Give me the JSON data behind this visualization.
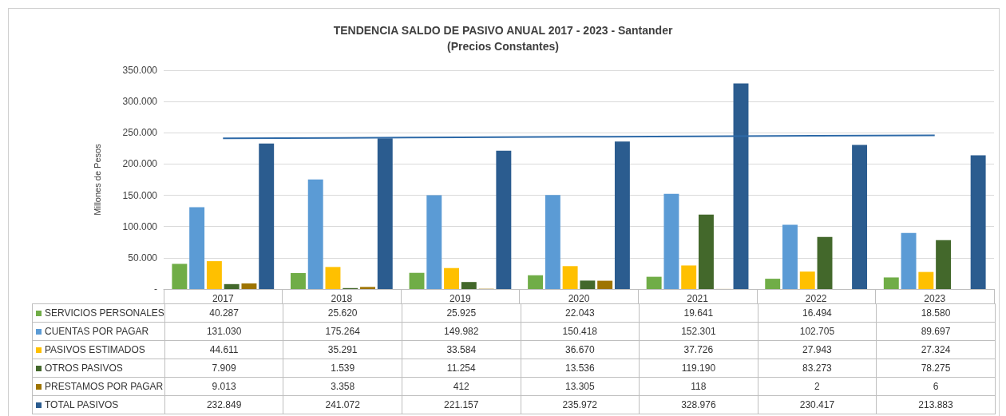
{
  "chart_data": {
    "type": "bar",
    "title": "TENDENCIA SALDO DE PASIVO ANUAL 2017 - 2023 - Santander",
    "subtitle": "(Precios Constantes)",
    "ylabel": "Millones de Pesos",
    "categories": [
      "2017",
      "2018",
      "2019",
      "2020",
      "2021",
      "2022",
      "2023"
    ],
    "series": [
      {
        "name": "SERVICIOS PERSONALES",
        "color": "#70ad47",
        "values": [
          40287,
          25620,
          25925,
          22043,
          19641,
          16494,
          18580
        ],
        "value_labels": [
          "40.287",
          "25.620",
          "25.925",
          "22.043",
          "19.641",
          "16.494",
          "18.580"
        ]
      },
      {
        "name": "CUENTAS POR PAGAR",
        "color": "#5b9bd5",
        "values": [
          131030,
          175264,
          149982,
          150418,
          152301,
          102705,
          89697
        ],
        "value_labels": [
          "131.030",
          "175.264",
          "149.982",
          "150.418",
          "152.301",
          "102.705",
          "89.697"
        ]
      },
      {
        "name": "PASIVOS ESTIMADOS",
        "color": "#ffc000",
        "values": [
          44611,
          35291,
          33584,
          36670,
          37726,
          27943,
          27324
        ],
        "value_labels": [
          "44.611",
          "35.291",
          "33.584",
          "36.670",
          "37.726",
          "27.943",
          "27.324"
        ]
      },
      {
        "name": "OTROS PASIVOS",
        "color": "#43682b",
        "values": [
          7909,
          1539,
          11254,
          13536,
          119190,
          83273,
          78275
        ],
        "value_labels": [
          "7.909",
          "1.539",
          "11.254",
          "13.536",
          "119.190",
          "83.273",
          "78.275"
        ]
      },
      {
        "name": "PRESTAMOS POR PAGAR",
        "color": "#9e7400",
        "values": [
          9013,
          3358,
          412,
          13305,
          118,
          2,
          6
        ],
        "value_labels": [
          "9.013",
          "3.358",
          "412",
          "13.305",
          "118",
          "2",
          "6"
        ]
      },
      {
        "name": "TOTAL PASIVOS",
        "color": "#2b5c8f",
        "values": [
          232849,
          241072,
          221157,
          235972,
          328976,
          230417,
          213883
        ],
        "value_labels": [
          "232.849",
          "241.072",
          "221.157",
          "235.972",
          "328.976",
          "230.417",
          "213.883"
        ]
      },
      {
        "type": "line",
        "color": "#2e6aa8",
        "values": [
          241000,
          241900,
          242800,
          243600,
          244400,
          245200,
          246000
        ]
      }
    ],
    "ylim": [
      0,
      350000
    ],
    "yticks": [
      {
        "value": 0,
        "label": "-"
      },
      {
        "value": 50000,
        "label": "50.000"
      },
      {
        "value": 100000,
        "label": "100.000"
      },
      {
        "value": 150000,
        "label": "150.000"
      },
      {
        "value": 200000,
        "label": "200.000"
      },
      {
        "value": 250000,
        "label": "250.000"
      },
      {
        "value": 300000,
        "label": "300.000"
      },
      {
        "value": 350000,
        "label": "350.000"
      }
    ],
    "grid": "y",
    "legend": "bottom",
    "marker": "none",
    "line_style": "solid"
  }
}
